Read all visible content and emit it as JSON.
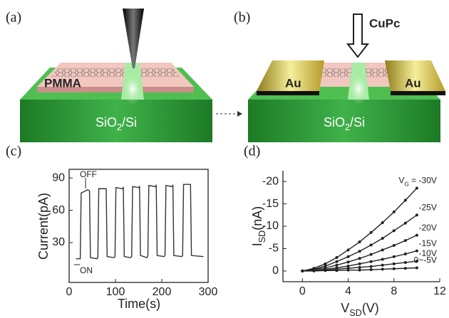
{
  "panel_a": {
    "label": "(a)",
    "layer_label": "PMMA",
    "substrate_label": "SiO2/Si"
  },
  "panel_b": {
    "label": "(b)",
    "molecule_label": "CuPc",
    "electrode_labels": [
      "Au",
      "Au"
    ],
    "substrate_label": "SiO2/Si"
  },
  "chart_data": [
    {
      "type": "line",
      "label": "(c)",
      "x_label": "Time(s)",
      "y_label": "Current(pA)",
      "x": [
        15,
        24,
        26,
        40,
        44,
        46,
        60,
        62,
        64,
        78,
        80,
        82,
        97,
        99,
        101,
        115,
        117,
        119,
        133,
        135,
        137,
        150,
        152,
        154,
        168,
        170,
        172,
        186,
        188,
        190,
        205,
        207,
        209,
        222,
        224,
        226,
        243,
        245,
        247,
        260,
        262,
        264,
        290
      ],
      "values": [
        15,
        15,
        76,
        79,
        78,
        16,
        15,
        16,
        80,
        80,
        80,
        17,
        16,
        17,
        81,
        80,
        81,
        17,
        16,
        17,
        82,
        81,
        82,
        18,
        16,
        18,
        83,
        82,
        83,
        18,
        17,
        18,
        83,
        82,
        83,
        18,
        17,
        18,
        84,
        84,
        84,
        18,
        17
      ],
      "color": "#333333",
      "annotations": [
        "OFF",
        "ON"
      ],
      "xlim": [
        0,
        300
      ],
      "xticks": [
        0,
        100,
        200,
        300
      ],
      "ylim": [
        -7,
        98
      ],
      "yticks": [
        30,
        60,
        90
      ]
    },
    {
      "type": "line",
      "label": "(d)",
      "x_label": "VSD(V)",
      "y_label": "ISD(nA)",
      "markers": true,
      "x": [
        0,
        1,
        2,
        3,
        4,
        5,
        6,
        7,
        8,
        9,
        10
      ],
      "series": [
        {
          "name": "VG = -30V",
          "color": "#222222",
          "values": [
            0,
            -0.6,
            -1.6,
            -3.0,
            -4.7,
            -6.5,
            -8.6,
            -10.8,
            -13.2,
            -15.8,
            -18.5
          ]
        },
        {
          "name": "-25V",
          "color": "#222222",
          "values": [
            0,
            -0.4,
            -1.1,
            -2.1,
            -3.2,
            -4.4,
            -5.8,
            -7.3,
            -9.0,
            -10.7,
            -12.5
          ]
        },
        {
          "name": "-20V",
          "color": "#222222",
          "values": [
            0,
            -0.3,
            -0.7,
            -1.3,
            -2.0,
            -2.8,
            -3.7,
            -4.7,
            -5.7,
            -6.8,
            -8
          ]
        },
        {
          "name": "-15V",
          "color": "#222222",
          "values": [
            0,
            -0.1,
            -0.4,
            -0.7,
            -1.1,
            -1.6,
            -2.1,
            -2.6,
            -3.2,
            -3.8,
            -4.5
          ]
        },
        {
          "name": "-10V",
          "color": "#222222",
          "values": [
            0,
            -0.1,
            -0.2,
            -0.4,
            -0.6,
            -0.8,
            -1.0,
            -1.3,
            -1.6,
            -1.9,
            -2.2
          ]
        },
        {
          "name": "0~-5V",
          "color": "#222222",
          "values": [
            0,
            0,
            -0.1,
            -0.1,
            -0.2,
            -0.2,
            -0.3,
            -0.4,
            -0.5,
            -0.6,
            -0.7
          ]
        }
      ],
      "xlim": [
        -1.7,
        12
      ],
      "xticks": [
        0,
        4,
        8,
        12
      ],
      "ylim": [
        2.4,
        -22.4
      ],
      "yticks": [
        -20,
        -15,
        -10,
        -5,
        0
      ]
    }
  ]
}
